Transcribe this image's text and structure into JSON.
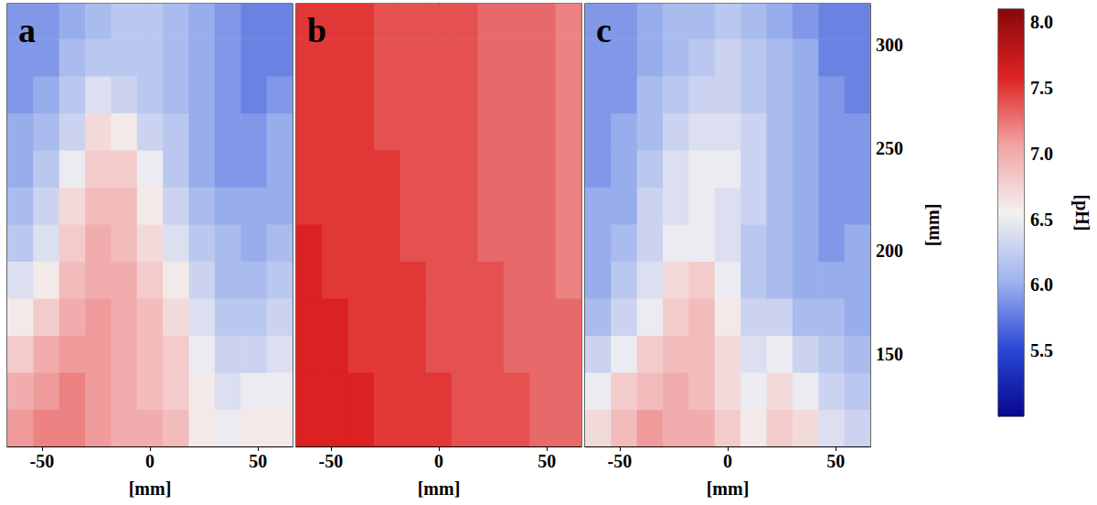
{
  "chart_data": [
    {
      "type": "heatmap",
      "panel_label": "a",
      "x_label": "[mm]",
      "tick_labels": "x",
      "xlim": [
        -66,
        66
      ],
      "xticks": [
        -50,
        0,
        50
      ],
      "ylim": [
        105,
        320
      ],
      "yticks": [
        150,
        200,
        250,
        300
      ],
      "x_edges": [
        -66,
        -54,
        -42,
        -30,
        -18,
        -6,
        6,
        18,
        30,
        42,
        54,
        66
      ],
      "y_edges": [
        105,
        123,
        141,
        159,
        177,
        195,
        213,
        231,
        249,
        267,
        285,
        303,
        320
      ],
      "cells": [
        [
          7.1,
          7.2,
          7.2,
          7.1,
          7.0,
          7.0,
          6.9,
          6.6,
          6.5,
          6.6,
          6.6
        ],
        [
          7.0,
          7.1,
          7.2,
          7.1,
          7.0,
          6.9,
          6.8,
          6.6,
          6.4,
          6.5,
          6.5
        ],
        [
          6.8,
          7.0,
          7.1,
          7.1,
          7.0,
          6.9,
          6.8,
          6.5,
          6.3,
          6.3,
          6.4
        ],
        [
          6.6,
          6.8,
          7.0,
          7.1,
          7.0,
          6.9,
          6.7,
          6.4,
          6.2,
          6.2,
          6.3
        ],
        [
          6.4,
          6.6,
          6.9,
          7.0,
          7.0,
          6.8,
          6.6,
          6.3,
          6.1,
          6.1,
          6.2
        ],
        [
          6.2,
          6.4,
          6.8,
          7.0,
          6.9,
          6.7,
          6.4,
          6.2,
          6.1,
          6.0,
          6.1
        ],
        [
          6.1,
          6.3,
          6.7,
          6.9,
          6.9,
          6.6,
          6.3,
          6.1,
          6.0,
          6.0,
          6.0
        ],
        [
          6.0,
          6.2,
          6.5,
          6.8,
          6.8,
          6.5,
          6.2,
          6.0,
          5.9,
          5.9,
          6.0
        ],
        [
          6.0,
          6.1,
          6.3,
          6.7,
          6.6,
          6.3,
          6.2,
          6.0,
          5.9,
          5.9,
          6.0
        ],
        [
          5.9,
          6.0,
          6.2,
          6.4,
          6.3,
          6.2,
          6.1,
          6.0,
          5.9,
          5.8,
          5.9
        ],
        [
          5.9,
          5.9,
          6.1,
          6.2,
          6.2,
          6.2,
          6.1,
          6.0,
          5.9,
          5.8,
          5.8
        ],
        [
          5.9,
          5.9,
          6.0,
          6.1,
          6.2,
          6.2,
          6.1,
          6.0,
          5.9,
          5.8,
          5.8
        ]
      ]
    },
    {
      "type": "heatmap",
      "panel_label": "b",
      "x_label": "[mm]",
      "tick_labels": "x",
      "xlim": [
        -66,
        66
      ],
      "xticks": [
        -50,
        0,
        50
      ],
      "ylim": [
        105,
        320
      ],
      "yticks": [
        150,
        200,
        250,
        300
      ],
      "x_edges": [
        -66,
        -54,
        -42,
        -30,
        -18,
        -6,
        6,
        18,
        30,
        42,
        54,
        66
      ],
      "y_edges": [
        105,
        123,
        141,
        159,
        177,
        195,
        213,
        231,
        249,
        267,
        285,
        303,
        320
      ],
      "cells": [
        [
          7.6,
          7.6,
          7.6,
          7.5,
          7.5,
          7.5,
          7.4,
          7.4,
          7.4,
          7.3,
          7.3
        ],
        [
          7.6,
          7.6,
          7.6,
          7.5,
          7.5,
          7.5,
          7.4,
          7.4,
          7.4,
          7.3,
          7.3
        ],
        [
          7.6,
          7.6,
          7.5,
          7.5,
          7.5,
          7.4,
          7.4,
          7.4,
          7.3,
          7.3,
          7.3
        ],
        [
          7.6,
          7.6,
          7.5,
          7.5,
          7.5,
          7.4,
          7.4,
          7.4,
          7.3,
          7.3,
          7.3
        ],
        [
          7.6,
          7.5,
          7.5,
          7.5,
          7.5,
          7.4,
          7.4,
          7.4,
          7.3,
          7.3,
          7.2
        ],
        [
          7.6,
          7.5,
          7.5,
          7.5,
          7.4,
          7.4,
          7.4,
          7.3,
          7.3,
          7.3,
          7.2
        ],
        [
          7.5,
          7.5,
          7.5,
          7.5,
          7.4,
          7.4,
          7.4,
          7.3,
          7.3,
          7.3,
          7.2
        ],
        [
          7.5,
          7.5,
          7.5,
          7.5,
          7.4,
          7.4,
          7.4,
          7.3,
          7.3,
          7.3,
          7.2
        ],
        [
          7.5,
          7.5,
          7.5,
          7.4,
          7.4,
          7.4,
          7.4,
          7.3,
          7.3,
          7.3,
          7.2
        ],
        [
          7.5,
          7.5,
          7.5,
          7.4,
          7.4,
          7.4,
          7.4,
          7.3,
          7.3,
          7.3,
          7.2
        ],
        [
          7.5,
          7.5,
          7.5,
          7.4,
          7.4,
          7.4,
          7.4,
          7.3,
          7.3,
          7.3,
          7.2
        ],
        [
          7.5,
          7.5,
          7.5,
          7.4,
          7.4,
          7.4,
          7.4,
          7.3,
          7.3,
          7.3,
          7.2
        ]
      ]
    },
    {
      "type": "heatmap",
      "panel_label": "c",
      "x_label": "[mm]",
      "y_label": "[mm]",
      "xlim": [
        -66,
        66
      ],
      "xticks": [
        -50,
        0,
        50
      ],
      "ylim": [
        105,
        320
      ],
      "yticks": [
        150,
        200,
        250,
        300
      ],
      "x_edges": [
        -66,
        -54,
        -42,
        -30,
        -18,
        -6,
        6,
        18,
        30,
        42,
        54,
        66
      ],
      "y_edges": [
        105,
        123,
        141,
        159,
        177,
        195,
        213,
        231,
        249,
        267,
        285,
        303,
        320
      ],
      "cells": [
        [
          6.7,
          6.9,
          7.1,
          7.0,
          7.0,
          6.8,
          6.6,
          6.8,
          6.7,
          6.4,
          6.3
        ],
        [
          6.5,
          6.8,
          6.9,
          7.0,
          6.9,
          6.7,
          6.5,
          6.7,
          6.5,
          6.3,
          6.2
        ],
        [
          6.3,
          6.5,
          6.8,
          6.9,
          6.9,
          6.7,
          6.4,
          6.5,
          6.3,
          6.2,
          6.1
        ],
        [
          6.1,
          6.3,
          6.5,
          6.8,
          6.9,
          6.6,
          6.3,
          6.3,
          6.1,
          6.1,
          6.0
        ],
        [
          6.0,
          6.2,
          6.4,
          6.7,
          6.8,
          6.5,
          6.2,
          6.1,
          6.0,
          6.0,
          6.0
        ],
        [
          6.0,
          6.1,
          6.3,
          6.5,
          6.5,
          6.4,
          6.2,
          6.1,
          6.0,
          5.9,
          6.0
        ],
        [
          6.0,
          6.0,
          6.3,
          6.4,
          6.5,
          6.4,
          6.3,
          6.1,
          6.0,
          5.9,
          5.9
        ],
        [
          5.9,
          6.0,
          6.2,
          6.4,
          6.5,
          6.5,
          6.3,
          6.1,
          6.0,
          5.9,
          5.9
        ],
        [
          5.9,
          6.0,
          6.1,
          6.3,
          6.4,
          6.4,
          6.3,
          6.1,
          6.0,
          5.9,
          5.9
        ],
        [
          5.9,
          5.9,
          6.1,
          6.2,
          6.3,
          6.3,
          6.2,
          6.1,
          6.0,
          5.9,
          5.8
        ],
        [
          5.9,
          5.9,
          6.0,
          6.1,
          6.2,
          6.3,
          6.2,
          6.1,
          6.0,
          5.8,
          5.8
        ],
        [
          5.9,
          5.9,
          6.0,
          6.1,
          6.1,
          6.2,
          6.1,
          6.0,
          5.9,
          5.8,
          5.8
        ]
      ]
    }
  ],
  "colorbar": {
    "label": "[pH]",
    "range": [
      5.0,
      8.1
    ],
    "ticks": [
      5.5,
      {
        "value": 6,
        "label": "6.0"
      },
      6.5,
      {
        "value": 7,
        "label": "7.0"
      },
      7.5,
      {
        "value": 8,
        "label": "8.0"
      }
    ]
  }
}
